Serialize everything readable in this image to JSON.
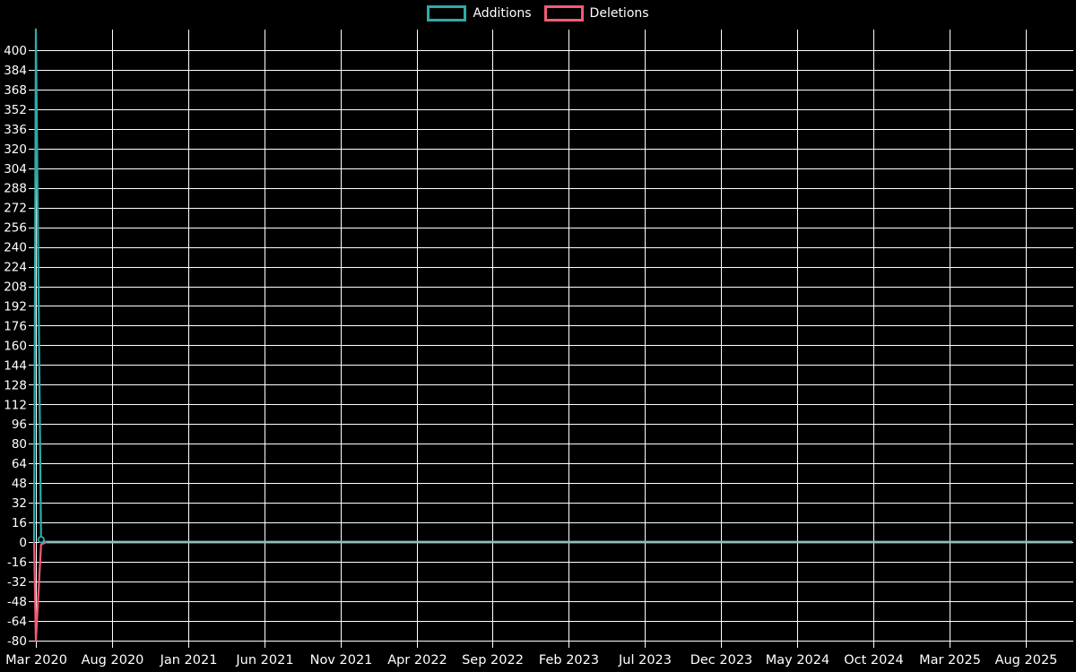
{
  "colors": {
    "background": "#000000",
    "grid": "#ffffff",
    "text": "#ffffff",
    "additions": "#2faaaa",
    "additions_flat": "#8fc0b8",
    "deletions": "#f25b76"
  },
  "legend": {
    "items": [
      {
        "label": "Additions",
        "color": "#2faaaa"
      },
      {
        "label": "Deletions",
        "color": "#f25b76"
      }
    ]
  },
  "chart_data": {
    "type": "line",
    "title": "",
    "xlabel": "",
    "ylabel": "",
    "grid": true,
    "legend_position": "top-center",
    "ylim": [
      -86,
      419
    ],
    "y_tick_step": 16,
    "y_ticks": [
      {
        "label": "400",
        "value": 400
      },
      {
        "label": "384",
        "value": 384
      },
      {
        "label": "368",
        "value": 368
      },
      {
        "label": "352",
        "value": 352
      },
      {
        "label": "336",
        "value": 336
      },
      {
        "label": "320",
        "value": 320
      },
      {
        "label": "304",
        "value": 304
      },
      {
        "label": "288",
        "value": 288
      },
      {
        "label": "272",
        "value": 272
      },
      {
        "label": "256",
        "value": 256
      },
      {
        "label": "240",
        "value": 240
      },
      {
        "label": "224",
        "value": 224
      },
      {
        "label": "208",
        "value": 208
      },
      {
        "label": "192",
        "value": 192
      },
      {
        "label": "176",
        "value": 176
      },
      {
        "label": "160",
        "value": 160
      },
      {
        "label": "144",
        "value": 144
      },
      {
        "label": "128",
        "value": 128
      },
      {
        "label": "112",
        "value": 112
      },
      {
        "label": "96",
        "value": 96
      },
      {
        "label": "80",
        "value": 80
      },
      {
        "label": "64",
        "value": 64
      },
      {
        "label": "48",
        "value": 48
      },
      {
        "label": "32",
        "value": 32
      },
      {
        "label": "16",
        "value": 16
      },
      {
        "label": "0",
        "value": 0
      },
      {
        "label": "-16",
        "value": -16
      },
      {
        "label": "-32",
        "value": -32
      },
      {
        "label": "-48",
        "value": -48
      },
      {
        "label": "-64",
        "value": -64
      },
      {
        "label": "-80",
        "value": -80
      }
    ],
    "x_ticks": [
      "Mar 2020",
      "Aug 2020",
      "Jan 2021",
      "Jun 2021",
      "Nov 2021",
      "Apr 2022",
      "Sep 2022",
      "Feb 2023",
      "Jul 2023",
      "Dec 2023",
      "May 2024",
      "Oct 2024",
      "Mar 2025",
      "Aug 2025"
    ],
    "weeks_total": 296,
    "series": [
      {
        "name": "Additions",
        "color": "#2faaaa",
        "flat_color": "#8fc0b8",
        "points": [
          {
            "week": 0,
            "value": 0
          },
          {
            "week": 0.5,
            "value": 417
          },
          {
            "week": 2,
            "value": 2
          },
          {
            "week": 3.5,
            "value": 0
          },
          {
            "week": 296,
            "value": 0
          }
        ],
        "marker": {
          "week": 2,
          "value": 2
        },
        "note": "peak 417 in first week of Mar 2020, then 0 for all remaining weeks"
      },
      {
        "name": "Deletions",
        "color": "#f25b76",
        "points": [
          {
            "week": 0,
            "value": 0
          },
          {
            "week": 0.5,
            "value": -80
          },
          {
            "week": 2,
            "value": -2
          },
          {
            "week": 3.5,
            "value": 0
          },
          {
            "week": 296,
            "value": 0
          }
        ],
        "note": "trough -80 in first week of Mar 2020, then 0 for all remaining weeks"
      }
    ]
  }
}
